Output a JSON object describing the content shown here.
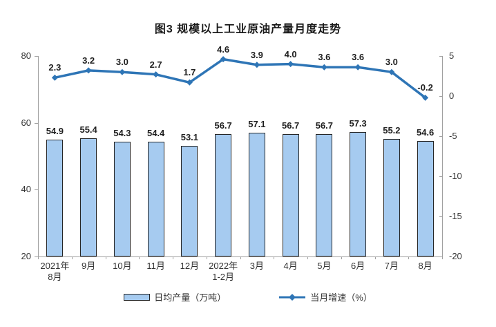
{
  "title": "图3 规模以上工业原油产量月度走势",
  "chart_data": {
    "type": "bar+line",
    "title": "图3 规模以上工业原油产量月度走势",
    "categories": [
      "2021年\n8月",
      "9月",
      "10月",
      "11月",
      "12月",
      "2022年\n1-2月",
      "3月",
      "4月",
      "5月",
      "6月",
      "7月",
      "8月"
    ],
    "series": [
      {
        "name": "日均产量（万吨）",
        "type": "bar",
        "axis": "left",
        "values": [
          54.9,
          55.4,
          54.3,
          54.4,
          53.1,
          56.7,
          57.1,
          56.7,
          56.7,
          57.3,
          55.2,
          54.6
        ],
        "labels": [
          "54.9",
          "55.4",
          "54.3",
          "54.4",
          "53.1",
          "56.7",
          "57.1",
          "56.7",
          "56.7",
          "57.3",
          "55.2",
          "54.6"
        ]
      },
      {
        "name": "当月增速（%）",
        "type": "line",
        "axis": "right",
        "values": [
          2.3,
          3.2,
          3.0,
          2.7,
          1.7,
          4.6,
          3.9,
          4.0,
          3.6,
          3.6,
          3.0,
          -0.2
        ],
        "labels": [
          "2.3",
          "3.2",
          "3.0",
          "2.7",
          "1.7",
          "4.6",
          "3.9",
          "4.0",
          "3.6",
          "3.6",
          "3.0",
          "-0.2"
        ]
      }
    ],
    "left_axis": {
      "min": 20,
      "max": 80,
      "ticks": [
        "20",
        "40",
        "60",
        "80"
      ]
    },
    "right_axis": {
      "min": -20,
      "max": 5,
      "ticks": [
        "5",
        "0",
        "-5",
        "-10",
        "-15",
        "-20"
      ]
    },
    "grid": false,
    "legend_position": "bottom"
  },
  "legend": {
    "bar_label": "日均产量（万吨）",
    "line_label": "当月增速（%）"
  },
  "colors": {
    "bar_fill": "#A6CBF0",
    "bar_border": "#262626",
    "line": "#2E75B6",
    "axis": "#A0A0A0",
    "text": "#262626"
  }
}
